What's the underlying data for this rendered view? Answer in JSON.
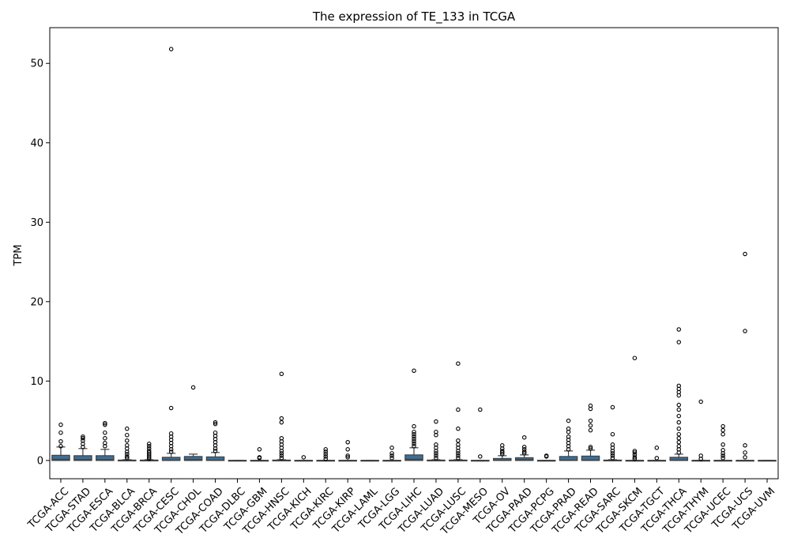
{
  "chart_data": {
    "type": "box",
    "title": "The expression of TE_133 in TCGA",
    "xlabel": "",
    "ylabel": "TPM",
    "ylim": [
      -2.3,
      54.5
    ],
    "yticks": [
      0,
      10,
      20,
      30,
      40,
      50
    ],
    "grid": false,
    "legend": "none",
    "box_color": "#3a6f9a",
    "categories": [
      "TCGA-ACC",
      "TCGA-STAD",
      "TCGA-ESCA",
      "TCGA-BLCA",
      "TCGA-BRCA",
      "TCGA-CESC",
      "TCGA-CHOL",
      "TCGA-COAD",
      "TCGA-DLBC",
      "TCGA-GBM",
      "TCGA-HNSC",
      "TCGA-KICH",
      "TCGA-KIRC",
      "TCGA-KIRP",
      "TCGA-LAML",
      "TCGA-LGG",
      "TCGA-LIHC",
      "TCGA-LUAD",
      "TCGA-LUSC",
      "TCGA-MESO",
      "TCGA-OV",
      "TCGA-PAAD",
      "TCGA-PCPG",
      "TCGA-PRAD",
      "TCGA-READ",
      "TCGA-SARC",
      "TCGA-SKCM",
      "TCGA-TGCT",
      "TCGA-THCA",
      "TCGA-THYM",
      "TCGA-UCEC",
      "TCGA-UCS",
      "TCGA-UVM"
    ],
    "boxes": [
      {
        "q1": 0.0,
        "median": 0.15,
        "q3": 0.65,
        "whisker_low": 0.0,
        "whisker_high": 1.7,
        "outliers": [
          1.8,
          2.4,
          3.5,
          4.5
        ]
      },
      {
        "q1": 0.0,
        "median": 0.1,
        "q3": 0.6,
        "whisker_low": 0.0,
        "whisker_high": 1.5,
        "outliers": [
          1.7,
          2.1,
          2.5,
          2.8,
          3.0
        ]
      },
      {
        "q1": 0.0,
        "median": 0.1,
        "q3": 0.6,
        "whisker_low": 0.0,
        "whisker_high": 1.4,
        "outliers": [
          1.8,
          2.2,
          2.8,
          3.5,
          4.5,
          4.7
        ]
      },
      {
        "q1": 0.0,
        "median": 0.0,
        "q3": 0.05,
        "whisker_low": 0.0,
        "whisker_high": 0.1,
        "outliers": [
          0.3,
          0.5,
          0.8,
          1.1,
          1.5,
          1.9,
          2.5,
          3.2,
          4.0
        ]
      },
      {
        "q1": 0.0,
        "median": 0.0,
        "q3": 0.05,
        "whisker_low": 0.0,
        "whisker_high": 0.1,
        "outliers": [
          0.2,
          0.4,
          0.6,
          0.8,
          1.0,
          1.2,
          1.5,
          1.8,
          2.1
        ]
      },
      {
        "q1": 0.0,
        "median": 0.05,
        "q3": 0.4,
        "whisker_low": 0.0,
        "whisker_high": 0.9,
        "outliers": [
          1.1,
          1.4,
          1.8,
          2.2,
          2.6,
          3.0,
          3.4,
          6.6,
          51.8
        ]
      },
      {
        "q1": 0.0,
        "median": 0.1,
        "q3": 0.5,
        "whisker_low": 0.0,
        "whisker_high": 0.8,
        "outliers": [
          9.2
        ]
      },
      {
        "q1": 0.0,
        "median": 0.05,
        "q3": 0.45,
        "whisker_low": 0.0,
        "whisker_high": 1.0,
        "outliers": [
          1.2,
          1.5,
          1.9,
          2.3,
          2.7,
          3.1,
          3.5,
          4.6,
          4.8
        ]
      },
      {
        "q1": 0.0,
        "median": 0.0,
        "q3": 0.02,
        "whisker_low": 0.0,
        "whisker_high": 0.03,
        "outliers": []
      },
      {
        "q1": 0.0,
        "median": 0.0,
        "q3": 0.02,
        "whisker_low": 0.0,
        "whisker_high": 0.03,
        "outliers": [
          0.3,
          0.4,
          1.4
        ]
      },
      {
        "q1": 0.0,
        "median": 0.0,
        "q3": 0.05,
        "whisker_low": 0.0,
        "whisker_high": 0.1,
        "outliers": [
          0.3,
          0.6,
          0.9,
          1.2,
          1.6,
          2.0,
          2.4,
          2.8,
          4.8,
          5.3,
          10.9
        ]
      },
      {
        "q1": 0.0,
        "median": 0.0,
        "q3": 0.02,
        "whisker_low": 0.0,
        "whisker_high": 0.03,
        "outliers": [
          0.4
        ]
      },
      {
        "q1": 0.0,
        "median": 0.0,
        "q3": 0.02,
        "whisker_low": 0.0,
        "whisker_high": 0.03,
        "outliers": [
          0.2,
          0.5,
          0.8,
          1.1,
          1.4
        ]
      },
      {
        "q1": 0.0,
        "median": 0.0,
        "q3": 0.02,
        "whisker_low": 0.0,
        "whisker_high": 0.03,
        "outliers": [
          0.4,
          0.6,
          1.4,
          2.3
        ]
      },
      {
        "q1": 0.0,
        "median": 0.0,
        "q3": 0.02,
        "whisker_low": 0.0,
        "whisker_high": 0.03,
        "outliers": []
      },
      {
        "q1": 0.0,
        "median": 0.0,
        "q3": 0.02,
        "whisker_low": 0.0,
        "whisker_high": 0.03,
        "outliers": [
          0.3,
          0.6,
          0.9,
          1.6
        ]
      },
      {
        "q1": 0.0,
        "median": 0.15,
        "q3": 0.7,
        "whisker_low": 0.0,
        "whisker_high": 1.6,
        "outliers": [
          1.8,
          2.1,
          2.4,
          2.7,
          3.0,
          3.3,
          3.6,
          4.3,
          11.3
        ]
      },
      {
        "q1": 0.0,
        "median": 0.0,
        "q3": 0.05,
        "whisker_low": 0.0,
        "whisker_high": 0.1,
        "outliers": [
          0.3,
          0.6,
          0.9,
          1.2,
          1.6,
          2.0,
          3.2,
          3.6,
          4.9
        ]
      },
      {
        "q1": 0.0,
        "median": 0.0,
        "q3": 0.05,
        "whisker_low": 0.0,
        "whisker_high": 0.1,
        "outliers": [
          0.3,
          0.6,
          0.9,
          1.2,
          1.6,
          2.0,
          2.5,
          4.0,
          6.4,
          12.2
        ]
      },
      {
        "q1": 0.0,
        "median": 0.0,
        "q3": 0.02,
        "whisker_low": 0.0,
        "whisker_high": 0.03,
        "outliers": [
          0.5,
          6.4
        ]
      },
      {
        "q1": 0.0,
        "median": 0.05,
        "q3": 0.25,
        "whisker_low": 0.0,
        "whisker_high": 0.6,
        "outliers": [
          0.8,
          1.0,
          1.2,
          1.5,
          1.9
        ]
      },
      {
        "q1": 0.0,
        "median": 0.1,
        "q3": 0.35,
        "whisker_low": 0.0,
        "whisker_high": 0.7,
        "outliers": [
          0.9,
          1.1,
          1.4,
          1.7,
          2.9
        ]
      },
      {
        "q1": 0.0,
        "median": 0.0,
        "q3": 0.02,
        "whisker_low": 0.0,
        "whisker_high": 0.03,
        "outliers": [
          0.5,
          0.6
        ]
      },
      {
        "q1": 0.0,
        "median": 0.05,
        "q3": 0.5,
        "whisker_low": 0.0,
        "whisker_high": 1.2,
        "outliers": [
          1.4,
          1.8,
          2.2,
          2.6,
          3.0,
          3.6,
          4.0,
          5.0
        ]
      },
      {
        "q1": 0.0,
        "median": 0.05,
        "q3": 0.55,
        "whisker_low": 0.0,
        "whisker_high": 1.3,
        "outliers": [
          1.5,
          1.7,
          3.8,
          4.4,
          5.0,
          6.5,
          6.9
        ]
      },
      {
        "q1": 0.0,
        "median": 0.0,
        "q3": 0.05,
        "whisker_low": 0.0,
        "whisker_high": 0.1,
        "outliers": [
          0.3,
          0.6,
          0.9,
          1.2,
          1.6,
          2.0,
          3.3,
          6.7
        ]
      },
      {
        "q1": 0.0,
        "median": 0.0,
        "q3": 0.02,
        "whisker_low": 0.0,
        "whisker_high": 0.03,
        "outliers": [
          0.2,
          0.4,
          0.7,
          1.0,
          1.2,
          12.9
        ]
      },
      {
        "q1": 0.0,
        "median": 0.0,
        "q3": 0.02,
        "whisker_low": 0.0,
        "whisker_high": 0.03,
        "outliers": [
          0.3,
          1.6
        ]
      },
      {
        "q1": 0.0,
        "median": 0.05,
        "q3": 0.4,
        "whisker_low": 0.0,
        "whisker_high": 0.8,
        "outliers": [
          1.0,
          1.4,
          1.8,
          2.3,
          2.8,
          3.3,
          4.0,
          4.8,
          5.6,
          6.4,
          7.0,
          8.2,
          8.6,
          9.0,
          9.4,
          14.9,
          16.5
        ]
      },
      {
        "q1": 0.0,
        "median": 0.0,
        "q3": 0.02,
        "whisker_low": 0.0,
        "whisker_high": 0.03,
        "outliers": [
          0.2,
          0.6,
          7.4
        ]
      },
      {
        "q1": 0.0,
        "median": 0.0,
        "q3": 0.02,
        "whisker_low": 0.0,
        "whisker_high": 0.03,
        "outliers": [
          0.3,
          0.6,
          0.9,
          1.3,
          2.0,
          3.3,
          3.8,
          4.3
        ]
      },
      {
        "q1": 0.0,
        "median": 0.0,
        "q3": 0.02,
        "whisker_low": 0.0,
        "whisker_high": 0.03,
        "outliers": [
          0.4,
          1.0,
          1.9,
          16.3,
          26.0
        ]
      },
      {
        "q1": 0.0,
        "median": 0.0,
        "q3": 0.02,
        "whisker_low": 0.0,
        "whisker_high": 0.03,
        "outliers": []
      }
    ]
  }
}
